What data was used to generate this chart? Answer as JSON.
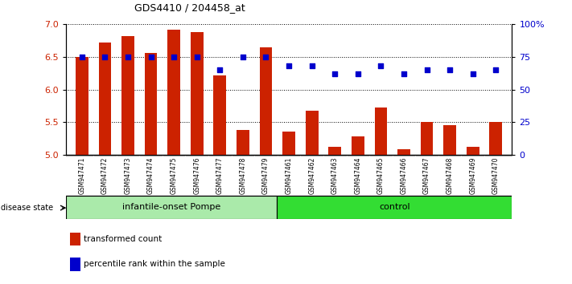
{
  "title": "GDS4410 / 204458_at",
  "samples": [
    "GSM947471",
    "GSM947472",
    "GSM947473",
    "GSM947474",
    "GSM947475",
    "GSM947476",
    "GSM947477",
    "GSM947478",
    "GSM947479",
    "GSM947461",
    "GSM947462",
    "GSM947463",
    "GSM947464",
    "GSM947465",
    "GSM947466",
    "GSM947467",
    "GSM947468",
    "GSM947469",
    "GSM947470"
  ],
  "red_values": [
    6.5,
    6.72,
    6.82,
    6.56,
    6.92,
    6.88,
    6.22,
    5.38,
    6.65,
    5.35,
    5.68,
    5.12,
    5.28,
    5.72,
    5.08,
    5.5,
    5.45,
    5.12,
    5.5
  ],
  "blue_values": [
    75,
    75,
    75,
    75,
    75,
    75,
    65,
    75,
    75,
    68,
    68,
    62,
    62,
    68,
    62,
    65,
    65,
    62,
    65
  ],
  "groups": [
    {
      "label": "infantile-onset Pompe",
      "start": 0,
      "end": 9,
      "color": "#aaeaaa"
    },
    {
      "label": "control",
      "start": 9,
      "end": 19,
      "color": "#33dd33"
    }
  ],
  "ylim_left": [
    5.0,
    7.0
  ],
  "ylim_right": [
    0,
    100
  ],
  "yticks_left": [
    5.0,
    5.5,
    6.0,
    6.5,
    7.0
  ],
  "yticks_right": [
    0,
    25,
    50,
    75,
    100
  ],
  "ytick_labels_right": [
    "0",
    "25",
    "50",
    "75",
    "100%"
  ],
  "bar_color": "#cc2200",
  "dot_color": "#0000cc",
  "bar_width": 0.55,
  "legend_items": [
    {
      "label": "transformed count",
      "color": "#cc2200"
    },
    {
      "label": "percentile rank within the sample",
      "color": "#0000cc"
    }
  ],
  "disease_state_label": "disease state",
  "background_color": "#ffffff",
  "xtick_bg_color": "#cccccc",
  "n_pompe": 9,
  "n_total": 19
}
